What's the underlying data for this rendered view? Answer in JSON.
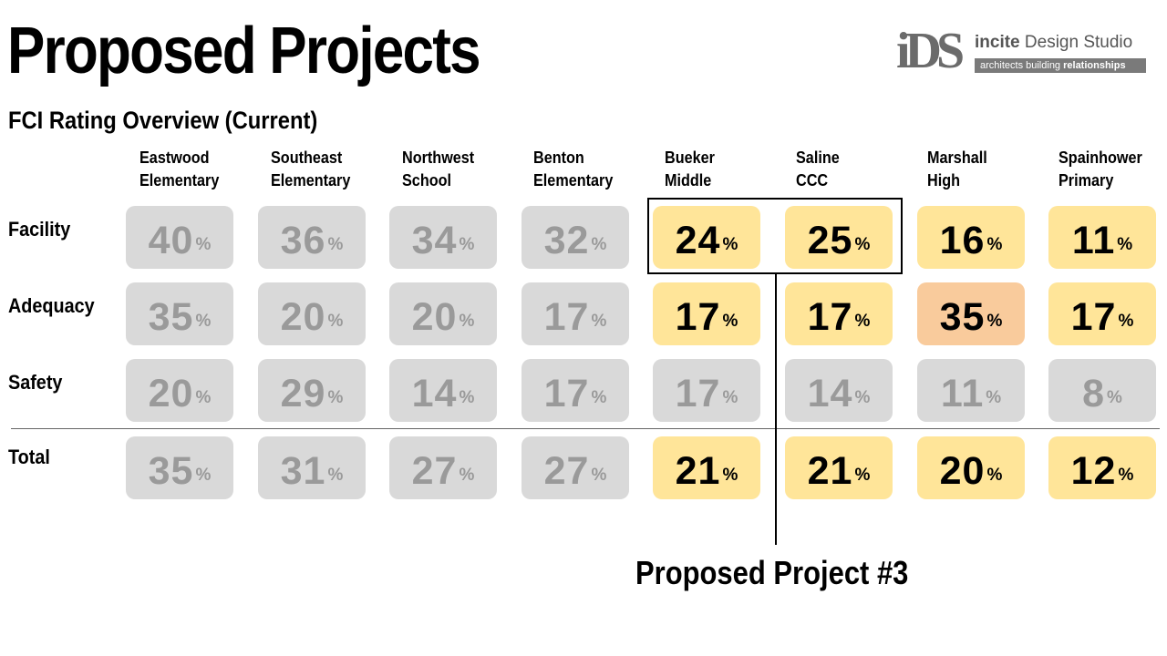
{
  "title": "Proposed Projects",
  "subtitle": "FCI Rating Overview (Current)",
  "logo": {
    "mark": "iDS",
    "name_bold": "incite",
    "name_rest": " Design Studio",
    "tagline_plain": "architects building ",
    "tagline_bold": "relationships"
  },
  "columns": [
    {
      "line1": "Eastwood",
      "line2": "Elementary"
    },
    {
      "line1": "Southeast",
      "line2": "Elementary"
    },
    {
      "line1": "Northwest",
      "line2": "School"
    },
    {
      "line1": "Benton",
      "line2": "Elementary"
    },
    {
      "line1": "Bueker",
      "line2": "Middle"
    },
    {
      "line1": "Saline",
      "line2": "CCC"
    },
    {
      "line1": "Marshall",
      "line2": "High"
    },
    {
      "line1": "Spainhower",
      "line2": "Primary"
    }
  ],
  "rows": [
    {
      "label": "Facility",
      "values": [
        "40",
        "36",
        "34",
        "32",
        "24",
        "25",
        "16",
        "11"
      ]
    },
    {
      "label": "Adequacy",
      "values": [
        "35",
        "20",
        "20",
        "17",
        "17",
        "17",
        "35",
        "17"
      ]
    },
    {
      "label": "Safety",
      "values": [
        "20",
        "29",
        "14",
        "17",
        "17",
        "14",
        "11",
        "8"
      ]
    },
    {
      "label": "Total",
      "values": [
        "35",
        "31",
        "27",
        "27",
        "21",
        "21",
        "20",
        "12"
      ]
    }
  ],
  "percent_sign": "%",
  "colors": {
    "gray": "#d9d9d9",
    "yellow": "#ffe599",
    "orange": "#f9cb9c"
  },
  "cell_colors": [
    [
      "gray",
      "gray",
      "gray",
      "gray",
      "yellow",
      "yellow",
      "yellow",
      "yellow"
    ],
    [
      "gray",
      "gray",
      "gray",
      "gray",
      "yellow",
      "yellow",
      "orange",
      "yellow"
    ],
    [
      "gray",
      "gray",
      "gray",
      "gray",
      "gray",
      "gray",
      "gray",
      "gray"
    ],
    [
      "gray",
      "gray",
      "gray",
      "gray",
      "yellow",
      "yellow",
      "yellow",
      "yellow"
    ]
  ],
  "callout": "Proposed Project #3"
}
